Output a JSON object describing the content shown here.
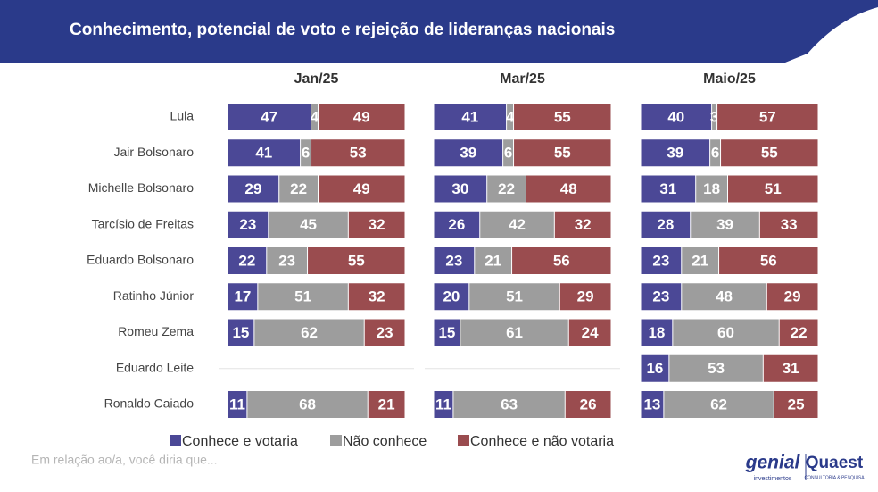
{
  "chart_data": {
    "type": "bar",
    "stacked": true,
    "orientation": "horizontal",
    "title": "Conhecimento, potencial de voto e rejeição de lideranças nacionais",
    "panels": [
      "Jan/25",
      "Mar/25",
      "Maio/25"
    ],
    "categories": [
      "Lula",
      "Jair Bolsonaro",
      "Michelle Bolsonaro",
      "Tarcísio de Freitas",
      "Eduardo Bolsonaro",
      "Ratinho Júnior",
      "Romeu Zema",
      "Eduardo Leite",
      "Ronaldo Caiado"
    ],
    "xlim": [
      0,
      100
    ],
    "series": [
      {
        "name": "Conhece e votaria",
        "color": "#4b4896",
        "values": [
          [
            47,
            41,
            29,
            23,
            22,
            17,
            15,
            null,
            11
          ],
          [
            41,
            39,
            30,
            26,
            23,
            20,
            15,
            null,
            11
          ],
          [
            40,
            39,
            31,
            28,
            23,
            23,
            18,
            16,
            13
          ]
        ]
      },
      {
        "name": "Não conhece",
        "color": "#9d9d9d",
        "values": [
          [
            4,
            6,
            22,
            45,
            23,
            51,
            62,
            null,
            68
          ],
          [
            4,
            6,
            22,
            42,
            21,
            51,
            61,
            null,
            63
          ],
          [
            3,
            6,
            18,
            39,
            21,
            48,
            60,
            53,
            62
          ]
        ]
      },
      {
        "name": "Conhece e não votaria",
        "color": "#9a4c4f",
        "values": [
          [
            49,
            53,
            49,
            32,
            55,
            32,
            23,
            null,
            21
          ],
          [
            55,
            55,
            48,
            32,
            56,
            29,
            24,
            null,
            26
          ],
          [
            57,
            55,
            51,
            33,
            56,
            29,
            22,
            31,
            25
          ]
        ]
      }
    ],
    "note": "Em relação ao/a, você diria que...",
    "logos": [
      "genial",
      "investimentos",
      "Quaest",
      "CONSULTORIA & PESQUISA"
    ]
  }
}
